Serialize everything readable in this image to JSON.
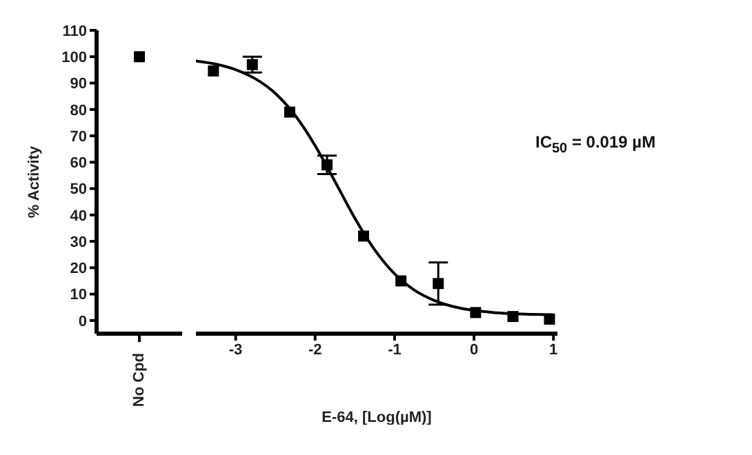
{
  "chart_data": [
    {
      "type": "scatter",
      "ylabel": "% Activity",
      "categories": [
        "No Cpd"
      ],
      "ylim": [
        -5,
        110
      ],
      "yticks": [
        0,
        10,
        20,
        30,
        40,
        50,
        60,
        70,
        80,
        90,
        100,
        110
      ],
      "marker": "square",
      "grid": false,
      "legend": false,
      "series": [
        {
          "color": "#000000",
          "values": [
            100
          ]
        }
      ]
    },
    {
      "type": "scatter",
      "xlabel": "E-64, [Log(µM)]",
      "xlim": [
        -3.5,
        1.05
      ],
      "xticks": [
        -3,
        -2,
        -1,
        0,
        1
      ],
      "ylim": [
        -5,
        110
      ],
      "tick_labels": "x",
      "marker": "square",
      "grid": false,
      "legend": false,
      "line_style": "solid",
      "annotations": [
        "IC$_{50}$ = 0.019 µM"
      ],
      "series": [
        {
          "color": "#000000",
          "x": [
            -3.28,
            -2.79,
            -2.32,
            -1.85,
            -1.39,
            -0.92,
            -0.45,
            0.02,
            0.49,
            0.95
          ],
          "values": [
            94.6,
            97,
            79,
            59,
            32,
            15,
            14,
            3,
            1.5,
            0.5
          ],
          "errors": [
            null,
            3,
            null,
            3.5,
            null,
            null,
            8,
            null,
            null,
            null
          ]
        },
        {
          "type": "line",
          "marker": "none",
          "color": "#000000",
          "x": [
            -3.5,
            -3.25,
            -3,
            -2.75,
            -2.5,
            -2.25,
            -2,
            -1.75,
            -1.5,
            -1.25,
            -1,
            -0.75,
            -0.5,
            -0.25,
            0,
            0.25,
            0.5,
            0.75,
            1
          ],
          "values": [
            98.4,
            97.2,
            95.1,
            91.6,
            86.1,
            77.7,
            66.3,
            52.7,
            38.8,
            26.8,
            17.7,
            11.5,
            7.6,
            5.2,
            3.8,
            3.0,
            2.6,
            2.3,
            2.2
          ]
        }
      ]
    }
  ]
}
